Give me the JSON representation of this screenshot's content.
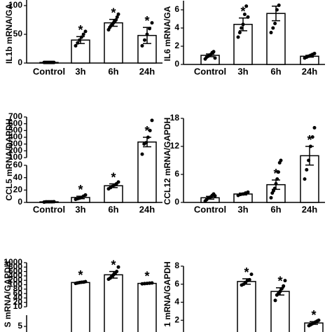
{
  "chart_data": [
    {
      "type": "bar",
      "ylabel": "IL1b mRNA/GA",
      "categories": [
        "Control",
        "3h",
        "6h",
        "24h"
      ],
      "values": [
        1,
        40,
        70,
        48
      ],
      "errors": [
        0.5,
        6,
        6,
        14
      ],
      "points": [
        [
          1,
          1,
          1,
          1,
          1,
          1,
          1,
          1
        ],
        [
          30,
          35,
          40,
          45,
          50,
          55
        ],
        [
          58,
          62,
          65,
          68,
          70,
          72,
          75,
          80,
          85
        ],
        [
          30,
          40,
          50,
          60,
          70
        ]
      ],
      "annotations": [
        null,
        "*",
        "*",
        "*"
      ],
      "ylim": [
        0,
        110
      ],
      "yticks": [
        0,
        50,
        100
      ]
    },
    {
      "type": "bar",
      "ylabel": "IL6 mRNA/GA",
      "categories": [
        "Control",
        "3h",
        "6h",
        "24h"
      ],
      "values": [
        1,
        4.4,
        5.6,
        0.9
      ],
      "errors": [
        0.15,
        0.7,
        0.8,
        0.1
      ],
      "points": [
        [
          0.6,
          0.8,
          0.9,
          1,
          1.1,
          1.3,
          1.4,
          0.7
        ],
        [
          3,
          3.5,
          4,
          4.4,
          5.5,
          6.4,
          5.2
        ],
        [
          3.5,
          4,
          4.5,
          6,
          6.5,
          7.3
        ],
        [
          0.7,
          0.8,
          0.9,
          1,
          1.1,
          1.2
        ]
      ],
      "annotations": [
        null,
        "*",
        null,
        null
      ],
      "ylim": [
        0,
        7
      ],
      "yticks": [
        0,
        2,
        4,
        6
      ]
    },
    {
      "type": "bar",
      "ylabel": "CCL5 mRNA/DAPDH",
      "categories": [
        "Control",
        "3h",
        "6h",
        "24h"
      ],
      "values": [
        1,
        8,
        27,
        330
      ],
      "errors": [
        0.3,
        2,
        3,
        70
      ],
      "points": [
        [
          0.5,
          1,
          1,
          1,
          1,
          1.2
        ],
        [
          5,
          6,
          7,
          8,
          10,
          12
        ],
        [
          22,
          24,
          26,
          28,
          30,
          33
        ],
        [
          150,
          300,
          320,
          400,
          500,
          650
        ]
      ],
      "annotations": [
        null,
        "*",
        "*",
        "*"
      ],
      "segments": [
        {
          "ylim": [
            0,
            60
          ],
          "yticks": [
            0,
            20,
            40,
            60
          ]
        },
        {
          "ylim": [
            100,
            700
          ],
          "yticks": [
            100,
            200,
            300,
            400,
            500,
            600,
            700
          ]
        }
      ]
    },
    {
      "type": "bar",
      "ylabel": "CCL12 mRNA/GAPDH",
      "categories": [
        "Control",
        "3h",
        "6h",
        "24h"
      ],
      "values": [
        1,
        1.8,
        3.8,
        10
      ],
      "errors": [
        0.3,
        0.2,
        1,
        2
      ],
      "points": [
        [
          0.3,
          0.6,
          0.9,
          1,
          1.2,
          1.5,
          1.8,
          1.4
        ],
        [
          1.5,
          1.7,
          1.8,
          2,
          2.2
        ],
        [
          1,
          2,
          2.5,
          3,
          4,
          5,
          6.5,
          8.5,
          9
        ],
        [
          5,
          7,
          9,
          12,
          14,
          16
        ]
      ],
      "annotations": [
        null,
        null,
        "*",
        "*"
      ],
      "ylim": [
        0,
        18
      ],
      "yticks": [
        0,
        6,
        12,
        18
      ]
    },
    {
      "type": "bar",
      "ylabel": "S mRNA/GAPDH",
      "categories": [
        null,
        null,
        null,
        null
      ],
      "values": [
        null,
        150,
        450,
        130
      ],
      "errors": [
        null,
        15,
        150,
        10
      ],
      "points": [
        [],
        [
          130,
          140,
          150,
          155,
          160,
          170
        ],
        [
          250,
          300,
          400,
          450,
          500,
          600,
          800
        ],
        [
          120,
          125,
          130,
          135,
          140
        ]
      ],
      "annotations": [
        null,
        "*",
        "*",
        "*"
      ],
      "segments": [
        {
          "ylim": [
            0,
            10
          ],
          "yticks": [
            5
          ]
        },
        {
          "ylim": [
            10,
            1000
          ],
          "yticks": [
            10,
            20,
            40,
            60,
            80,
            100,
            200,
            400,
            600,
            800,
            1000
          ],
          "spacing": "even-ticks"
        }
      ]
    },
    {
      "type": "bar",
      "ylabel": "1 mRNA/GAPDH",
      "categories": [
        null,
        null,
        null,
        null
      ],
      "values": [
        null,
        6.3,
        5.2,
        1.7
      ],
      "errors": [
        null,
        0.3,
        0.4,
        0.15
      ],
      "points": [
        [],
        [
          5.9,
          6,
          6.2,
          6.4,
          6.5,
          7.1
        ],
        [
          4.2,
          4.8,
          5,
          5.2,
          5.5,
          5.8,
          6.4
        ],
        [
          1.4,
          1.5,
          1.6,
          1.7,
          1.8,
          1.9,
          2
        ]
      ],
      "annotations": [
        null,
        "*",
        "*",
        "*"
      ],
      "ylim": [
        0,
        8
      ],
      "yticks": [
        2,
        4,
        6,
        8
      ]
    }
  ]
}
